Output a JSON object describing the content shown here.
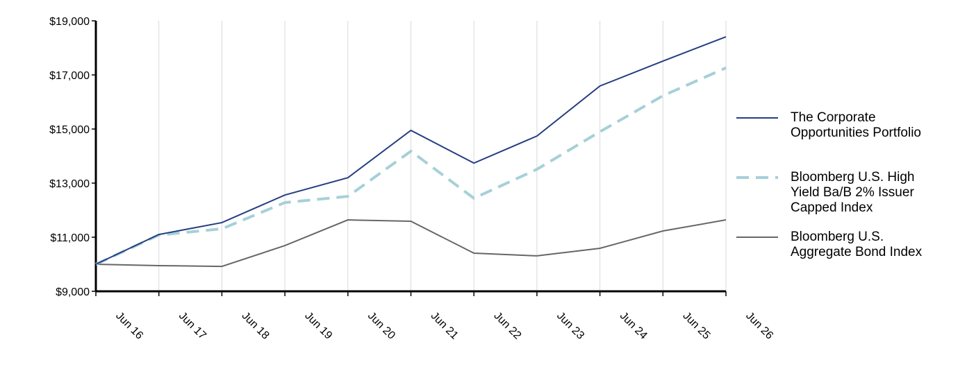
{
  "chart_data": {
    "type": "line",
    "categories": [
      "Jun 16",
      "Jun 17",
      "Jun 18",
      "Jun 19",
      "Jun 20",
      "Jun 21",
      "Jun 22",
      "Jun 23",
      "Jun 24",
      "Jun 25",
      "Jun 26"
    ],
    "series": [
      {
        "name": "The Corporate Opportunities Portfolio",
        "color": "#253e82",
        "dashed": false,
        "values": [
          10000,
          11100,
          11540,
          12560,
          13200,
          14950,
          13740,
          14740,
          16590,
          17510,
          18410
        ]
      },
      {
        "name": "Bloomberg U.S. High Yield Ba/B 2% Issuer Capped Index",
        "color": "#a6d0d8",
        "dashed": true,
        "values": [
          10000,
          11080,
          11310,
          12280,
          12510,
          14180,
          12440,
          13510,
          14900,
          16230,
          17260
        ]
      },
      {
        "name": "Bloomberg U.S. Aggregate Bond Index",
        "color": "#666666",
        "dashed": false,
        "values": [
          10000,
          9950,
          9920,
          10690,
          11640,
          11590,
          10410,
          10310,
          10590,
          11230,
          11640
        ]
      }
    ],
    "ylim": [
      9000,
      19000
    ],
    "yticks": [
      {
        "value": 9000,
        "label": "$9,000"
      },
      {
        "value": 11000,
        "label": "$11,000"
      },
      {
        "value": 13000,
        "label": "$13,000"
      },
      {
        "value": 15000,
        "label": "$15,000"
      },
      {
        "value": 17000,
        "label": "$17,000"
      },
      {
        "value": 19000,
        "label": "$19,000"
      }
    ],
    "grid": true,
    "legend": "right"
  }
}
